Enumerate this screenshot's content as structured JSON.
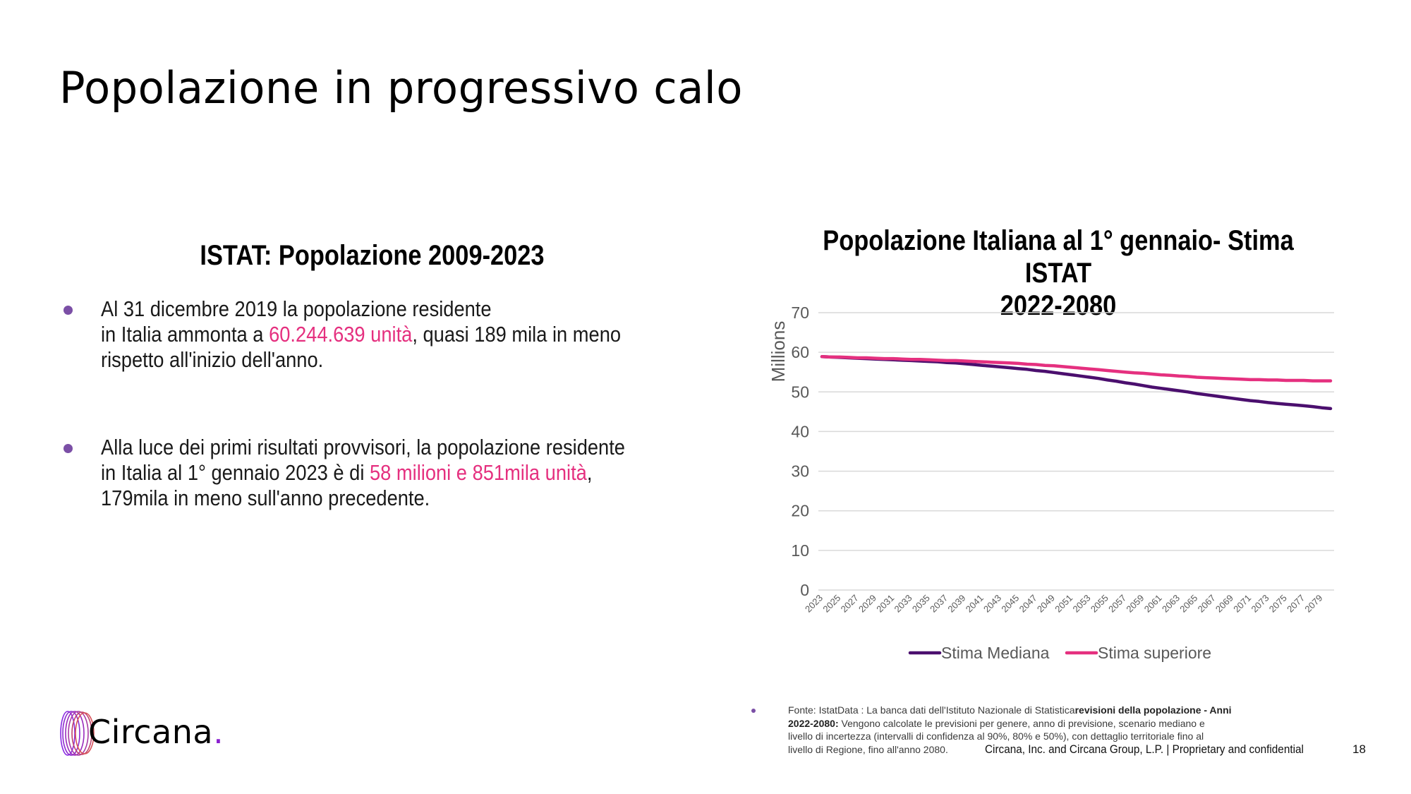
{
  "slide": {
    "title": "Popolazione in progressivo calo",
    "page_number": "18",
    "confidential": "Circana, Inc. and Circana Group, L.P. |  Proprietary and confidential",
    "logo_text": "Circana",
    "logo_dot": "."
  },
  "left": {
    "heading": "ISTAT: Popolazione 2009-2023",
    "bullets": [
      {
        "line1": "Al 31 dicembre 2019 la popolazione residente",
        "line2_pre": "in Italia ammonta a ",
        "line2_hl": "60.244.639 unità",
        "line2_post": ", quasi 189 mila in meno",
        "line3": "rispetto all'inizio dell'anno."
      },
      {
        "line1": "Alla luce dei primi risultati provvisori, la popolazione residente",
        "line2_pre": "in Italia al 1° gennaio 2023 è di ",
        "line2_hl": "58 milioni e 851mila unità",
        "line2_post": ",",
        "line3": "179mila in meno sull'anno precedente."
      }
    ]
  },
  "footnote": {
    "line1_pre": "Fonte: IstatData : La banca dati dell'Istituto Nazionale di Statistica",
    "line1_bold": "revisioni della popolazione - Anni",
    "line2_bold": "2022-2080:",
    "line2_post": " Vengono calcolate le previsioni per genere, anno di previsione, scenario mediano e",
    "line3": "livello di incertezza (intervalli di confidenza al 90%, 80% e 50%), con dettaglio territoriale fino al",
    "line4": "livello di Regione, fino all'anno 2080."
  },
  "colors": {
    "accent_pink": "#e5307f",
    "accent_purple": "#4b0f6e",
    "bullet": "#7b4fa6",
    "grid": "#d9d9d9"
  },
  "chart_data": {
    "type": "line",
    "title_line1": "Popolazione Italiana al 1° gennaio-  Stima ISTAT",
    "title_line2": "2022-2080",
    "xlabel": "",
    "ylabel": "Millions",
    "ylim": [
      0,
      70
    ],
    "yticks": [
      0,
      10,
      20,
      30,
      40,
      50,
      60,
      70
    ],
    "grid": true,
    "legend_position": "bottom",
    "x": [
      2023,
      2024,
      2025,
      2026,
      2027,
      2028,
      2029,
      2030,
      2031,
      2032,
      2033,
      2034,
      2035,
      2036,
      2037,
      2038,
      2039,
      2040,
      2041,
      2042,
      2043,
      2044,
      2045,
      2046,
      2047,
      2048,
      2049,
      2050,
      2051,
      2052,
      2053,
      2054,
      2055,
      2056,
      2057,
      2058,
      2059,
      2060,
      2061,
      2062,
      2063,
      2064,
      2065,
      2066,
      2067,
      2068,
      2069,
      2070,
      2071,
      2072,
      2073,
      2074,
      2075,
      2076,
      2077,
      2078,
      2079,
      2080
    ],
    "xtick_labels": [
      "2023",
      "2025",
      "2027",
      "2029",
      "2031",
      "2033",
      "2035",
      "2037",
      "2039",
      "2041",
      "2043",
      "2045",
      "2047",
      "2049",
      "2051",
      "2053",
      "2055",
      "2057",
      "2059",
      "2061",
      "2063",
      "2065",
      "2067",
      "2069",
      "2071",
      "2073",
      "2075",
      "2077",
      "2079"
    ],
    "series": [
      {
        "name": "Stima Mediana",
        "color": "#4b0f6e",
        "values": [
          58.9,
          58.8,
          58.7,
          58.6,
          58.5,
          58.4,
          58.3,
          58.2,
          58.1,
          58.0,
          57.9,
          57.8,
          57.7,
          57.6,
          57.4,
          57.3,
          57.1,
          56.9,
          56.7,
          56.5,
          56.3,
          56.1,
          55.9,
          55.7,
          55.4,
          55.2,
          54.9,
          54.6,
          54.3,
          54.0,
          53.7,
          53.4,
          53.0,
          52.7,
          52.3,
          52.0,
          51.6,
          51.2,
          50.9,
          50.6,
          50.3,
          50.0,
          49.6,
          49.3,
          49.0,
          48.7,
          48.4,
          48.1,
          47.8,
          47.6,
          47.3,
          47.1,
          46.9,
          46.7,
          46.5,
          46.3,
          46.0,
          45.8
        ]
      },
      {
        "name": "Stima superiore",
        "color": "#e5307f",
        "values": [
          58.9,
          58.8,
          58.8,
          58.7,
          58.6,
          58.6,
          58.5,
          58.4,
          58.4,
          58.3,
          58.2,
          58.2,
          58.1,
          58.0,
          57.9,
          57.9,
          57.8,
          57.7,
          57.6,
          57.5,
          57.4,
          57.3,
          57.2,
          57.0,
          56.9,
          56.7,
          56.6,
          56.4,
          56.2,
          56.0,
          55.8,
          55.6,
          55.4,
          55.2,
          55.0,
          54.8,
          54.7,
          54.5,
          54.3,
          54.2,
          54.0,
          53.9,
          53.7,
          53.6,
          53.5,
          53.4,
          53.3,
          53.2,
          53.1,
          53.1,
          53.0,
          53.0,
          52.9,
          52.9,
          52.9,
          52.8,
          52.8,
          52.8
        ]
      }
    ]
  }
}
